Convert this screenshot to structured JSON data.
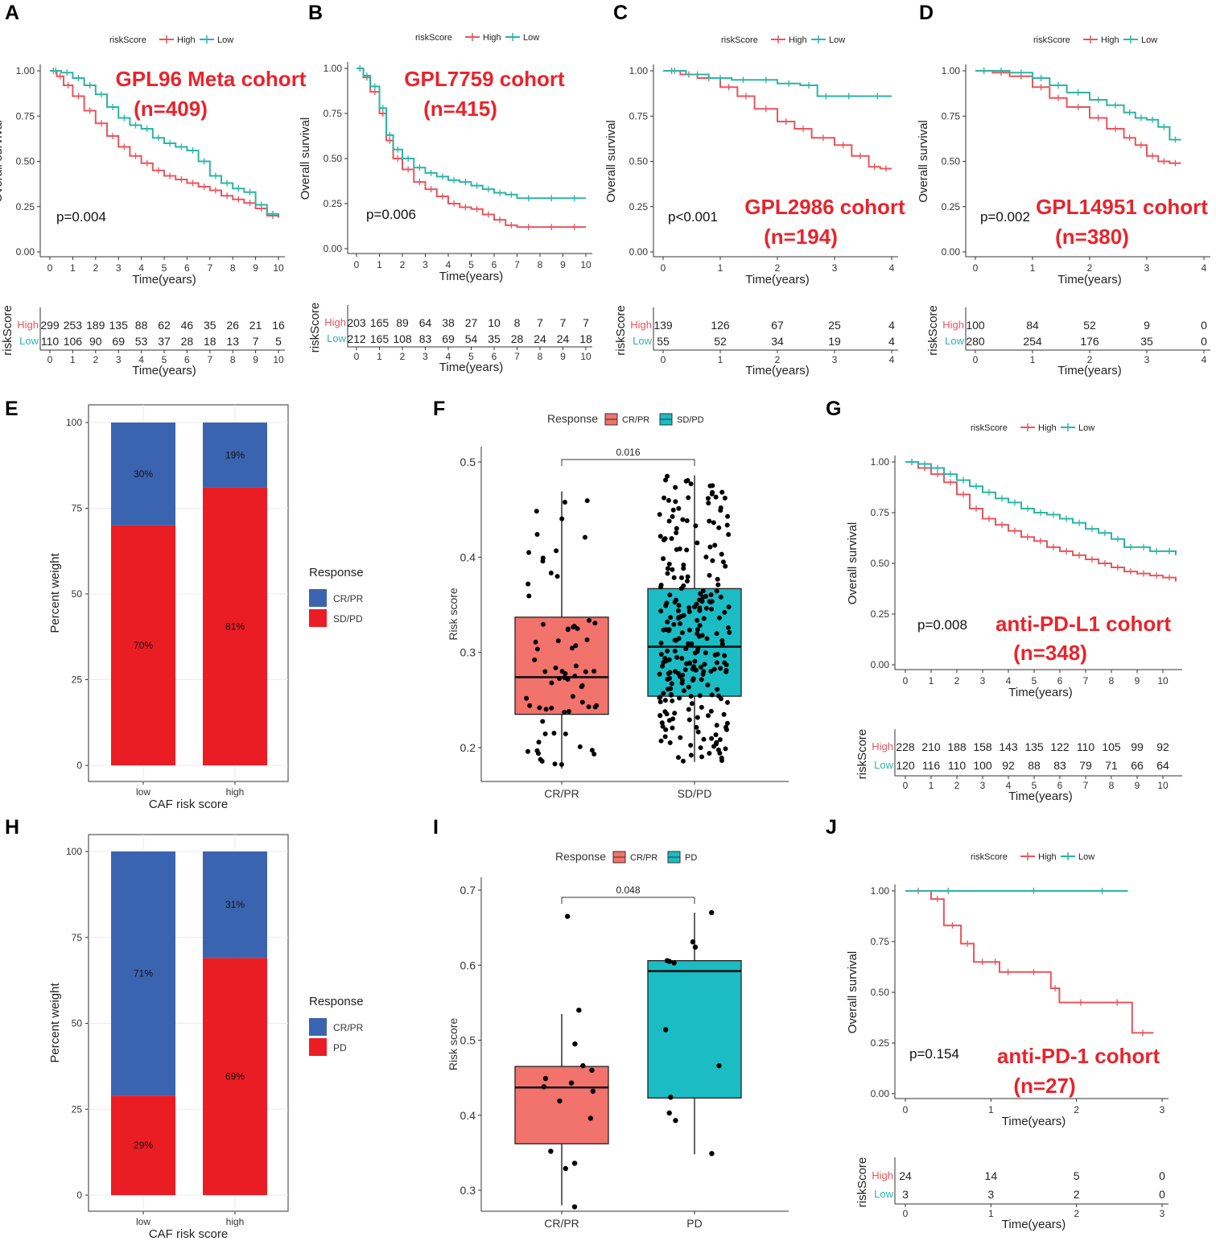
{
  "colors": {
    "high": "#e8555f",
    "low": "#2bb5a5",
    "crpr_bar": "#3b64b0",
    "sdpd_bar": "#ea1d25",
    "crpr_box": "#f2726c",
    "sdpd_box": "#1bbcc3",
    "cohort_label": "#e8242c"
  },
  "km_legend": {
    "title": "riskScore",
    "high": "High",
    "low": "Low"
  },
  "km_common": {
    "ylabel": "Overall survival",
    "xlabel": "Time(years)",
    "table_ylabel": "riskScore",
    "yticks": [
      "0.00",
      "0.25",
      "0.50",
      "0.75",
      "1.00"
    ]
  },
  "chart_data": [
    {
      "panel": "A",
      "type": "line",
      "title": "GPL96 Meta cohort",
      "n_label": "(n=409)",
      "pvalue": "p=0.004",
      "xlim": [
        0,
        10
      ],
      "ylim": [
        0,
        1
      ],
      "x_ticks": [
        0,
        1,
        2,
        3,
        4,
        5,
        6,
        7,
        8,
        9,
        10
      ],
      "series": [
        {
          "name": "High",
          "x": [
            0,
            0.3,
            0.6,
            1,
            1.5,
            2,
            2.5,
            3,
            3.5,
            4,
            4.5,
            5,
            5.5,
            6,
            6.5,
            7,
            7.5,
            8,
            8.5,
            9,
            9.5,
            10
          ],
          "y": [
            1,
            0.97,
            0.92,
            0.86,
            0.78,
            0.71,
            0.64,
            0.58,
            0.53,
            0.49,
            0.45,
            0.42,
            0.4,
            0.38,
            0.36,
            0.34,
            0.31,
            0.29,
            0.27,
            0.24,
            0.2,
            0.19
          ]
        },
        {
          "name": "Low",
          "x": [
            0,
            0.5,
            1,
            1.5,
            2,
            2.5,
            3,
            3.5,
            4,
            4.5,
            5,
            5.5,
            6,
            6.5,
            7,
            7.5,
            8,
            8.5,
            9,
            9.5,
            10
          ],
          "y": [
            1,
            0.99,
            0.96,
            0.92,
            0.87,
            0.8,
            0.74,
            0.7,
            0.68,
            0.63,
            0.6,
            0.58,
            0.56,
            0.5,
            0.42,
            0.38,
            0.35,
            0.33,
            0.26,
            0.21,
            0.2
          ]
        }
      ],
      "risk_table": {
        "times": [
          "0",
          "1",
          "2",
          "3",
          "4",
          "5",
          "6",
          "7",
          "8",
          "9",
          "10"
        ],
        "high": [
          "299",
          "253",
          "189",
          "135",
          "88",
          "62",
          "46",
          "35",
          "26",
          "21",
          "16"
        ],
        "low": [
          "110",
          "106",
          "90",
          "69",
          "53",
          "37",
          "28",
          "18",
          "13",
          "7",
          "5"
        ]
      }
    },
    {
      "panel": "B",
      "type": "line",
      "title": "GPL7759 cohort",
      "n_label": "(n=415)",
      "pvalue": "p=0.006",
      "xlim": [
        0,
        10
      ],
      "ylim": [
        0,
        1
      ],
      "x_ticks": [
        0,
        1,
        2,
        3,
        4,
        5,
        6,
        7,
        8,
        9,
        10
      ],
      "series": [
        {
          "name": "High",
          "x": [
            0,
            0.3,
            0.6,
            1,
            1.3,
            1.6,
            2,
            2.5,
            3,
            3.5,
            4,
            4.5,
            5,
            5.5,
            6,
            6.5,
            7,
            8,
            9,
            10
          ],
          "y": [
            1,
            0.95,
            0.87,
            0.75,
            0.6,
            0.5,
            0.44,
            0.37,
            0.33,
            0.29,
            0.25,
            0.23,
            0.22,
            0.19,
            0.16,
            0.13,
            0.12,
            0.12,
            0.12,
            0.12
          ]
        },
        {
          "name": "Low",
          "x": [
            0,
            0.3,
            0.6,
            1,
            1.3,
            1.6,
            2,
            2.5,
            3,
            3.5,
            4,
            4.5,
            5,
            5.5,
            6,
            6.5,
            7,
            8,
            9,
            10
          ],
          "y": [
            1,
            0.96,
            0.9,
            0.78,
            0.63,
            0.55,
            0.5,
            0.45,
            0.42,
            0.4,
            0.38,
            0.37,
            0.35,
            0.33,
            0.31,
            0.3,
            0.28,
            0.28,
            0.28,
            0.28
          ]
        }
      ],
      "risk_table": {
        "times": [
          "0",
          "1",
          "2",
          "3",
          "4",
          "5",
          "6",
          "7",
          "8",
          "9",
          "10"
        ],
        "high": [
          "203",
          "165",
          "89",
          "64",
          "38",
          "27",
          "10",
          "8",
          "7",
          "7",
          "7"
        ],
        "low": [
          "212",
          "165",
          "108",
          "83",
          "69",
          "54",
          "35",
          "28",
          "24",
          "24",
          "18"
        ]
      }
    },
    {
      "panel": "C",
      "type": "line",
      "title": "GPL2986 cohort",
      "n_label": "(n=194)",
      "pvalue": "p<0.001",
      "xlim": [
        0,
        4
      ],
      "ylim": [
        0,
        1
      ],
      "x_ticks": [
        0,
        1,
        2,
        3,
        4
      ],
      "series": [
        {
          "name": "High",
          "x": [
            0,
            0.3,
            0.6,
            1,
            1.3,
            1.6,
            2,
            2.3,
            2.6,
            3,
            3.3,
            3.6,
            3.8,
            4
          ],
          "y": [
            1,
            0.98,
            0.96,
            0.91,
            0.86,
            0.79,
            0.72,
            0.68,
            0.63,
            0.59,
            0.53,
            0.47,
            0.46,
            0.46
          ]
        },
        {
          "name": "Low",
          "x": [
            0,
            0.4,
            0.8,
            1.2,
            1.6,
            2,
            2.4,
            2.7,
            3,
            3.5,
            4
          ],
          "y": [
            1,
            0.98,
            0.96,
            0.95,
            0.95,
            0.93,
            0.92,
            0.86,
            0.86,
            0.86,
            0.86
          ]
        }
      ],
      "risk_table": {
        "times": [
          "0",
          "1",
          "2",
          "3",
          "4"
        ],
        "high": [
          "139",
          "126",
          "67",
          "25",
          "4"
        ],
        "low": [
          "55",
          "52",
          "34",
          "19",
          "4"
        ]
      }
    },
    {
      "panel": "D",
      "type": "line",
      "title": "GPL14951 cohort",
      "n_label": "(n=380)",
      "pvalue": "p=0.002",
      "xlim": [
        0,
        4
      ],
      "ylim": [
        0,
        1
      ],
      "x_ticks": [
        0,
        1,
        2,
        3,
        4
      ],
      "series": [
        {
          "name": "High",
          "x": [
            0,
            0.3,
            0.6,
            1,
            1.3,
            1.6,
            2,
            2.3,
            2.6,
            2.8,
            3,
            3.2,
            3.4,
            3.6
          ],
          "y": [
            1,
            0.99,
            0.97,
            0.91,
            0.85,
            0.8,
            0.74,
            0.68,
            0.63,
            0.59,
            0.53,
            0.5,
            0.49,
            0.49
          ]
        },
        {
          "name": "Low",
          "x": [
            0,
            0.3,
            0.6,
            1,
            1.3,
            1.6,
            2,
            2.3,
            2.6,
            2.8,
            3,
            3.2,
            3.4,
            3.6
          ],
          "y": [
            1,
            1,
            0.99,
            0.96,
            0.92,
            0.88,
            0.84,
            0.81,
            0.77,
            0.74,
            0.73,
            0.69,
            0.62,
            0.62
          ]
        }
      ],
      "risk_table": {
        "times": [
          "0",
          "1",
          "2",
          "3",
          "4"
        ],
        "high": [
          "100",
          "84",
          "52",
          "9",
          "0"
        ],
        "low": [
          "280",
          "254",
          "176",
          "35",
          "0"
        ]
      }
    },
    {
      "panel": "E",
      "type": "bar",
      "stacked": true,
      "xlabel": "CAF risk score",
      "ylabel": "Percent weight",
      "categories": [
        "low",
        "high"
      ],
      "yticks": [
        "0",
        "25",
        "50",
        "75",
        "100"
      ],
      "legend_title": "Response",
      "series": [
        {
          "name": "CR/PR",
          "values": [
            30,
            19
          ],
          "labels": [
            "30%",
            "19%"
          ]
        },
        {
          "name": "SD/PD",
          "values": [
            70,
            81
          ],
          "labels": [
            "70%",
            "81%"
          ]
        }
      ]
    },
    {
      "panel": "F",
      "type": "box",
      "legend_title": "Response",
      "ylabel": "Risk score",
      "categories": [
        "CR/PR",
        "SD/PD"
      ],
      "pvalue": "0.016",
      "ylim": [
        0.17,
        0.51
      ],
      "yticks": [
        "0.2",
        "0.3",
        "0.4",
        "0.5"
      ],
      "boxes": [
        {
          "name": "CR/PR",
          "q1": 0.235,
          "median": 0.274,
          "q3": 0.337,
          "whisk_low": 0.178,
          "whisk_high": 0.469
        },
        {
          "name": "SD/PD",
          "q1": 0.254,
          "median": 0.306,
          "q3": 0.367,
          "whisk_low": 0.185,
          "whisk_high": 0.486
        }
      ]
    },
    {
      "panel": "G",
      "type": "line",
      "title": "anti-PD-L1 cohort",
      "n_label": "(n=348)",
      "pvalue": "p=0.008",
      "xlim": [
        0,
        10.5
      ],
      "ylim": [
        0,
        1
      ],
      "x_ticks": [
        0,
        1,
        2,
        3,
        4,
        5,
        6,
        7,
        8,
        9,
        10
      ],
      "series": [
        {
          "name": "High",
          "x": [
            0,
            0.5,
            1,
            1.5,
            2,
            2.5,
            3,
            3.5,
            4,
            4.5,
            5,
            5.5,
            6,
            6.5,
            7,
            7.5,
            8,
            8.5,
            9,
            9.5,
            10,
            10.5
          ],
          "y": [
            1,
            0.97,
            0.94,
            0.9,
            0.84,
            0.77,
            0.72,
            0.69,
            0.66,
            0.63,
            0.61,
            0.58,
            0.56,
            0.54,
            0.52,
            0.5,
            0.48,
            0.46,
            0.45,
            0.44,
            0.43,
            0.41
          ]
        },
        {
          "name": "Low",
          "x": [
            0,
            0.5,
            1,
            1.5,
            2,
            2.5,
            3,
            3.5,
            4,
            4.5,
            5,
            5.5,
            6,
            6.5,
            7,
            7.5,
            8,
            8.5,
            9,
            9.5,
            10,
            10.5
          ],
          "y": [
            1,
            0.99,
            0.97,
            0.94,
            0.91,
            0.88,
            0.85,
            0.82,
            0.8,
            0.77,
            0.75,
            0.74,
            0.72,
            0.7,
            0.67,
            0.65,
            0.62,
            0.58,
            0.58,
            0.56,
            0.56,
            0.54
          ]
        }
      ],
      "risk_table": {
        "times": [
          "0",
          "1",
          "2",
          "3",
          "4",
          "5",
          "6",
          "7",
          "8",
          "9",
          "10"
        ],
        "high": [
          "228",
          "210",
          "188",
          "158",
          "143",
          "135",
          "122",
          "110",
          "105",
          "99",
          "92"
        ],
        "low": [
          "120",
          "116",
          "110",
          "100",
          "92",
          "88",
          "83",
          "79",
          "71",
          "66",
          "64"
        ]
      }
    },
    {
      "panel": "H",
      "type": "bar",
      "stacked": true,
      "xlabel": "CAF risk score",
      "ylabel": "Percent weight",
      "categories": [
        "low",
        "high"
      ],
      "yticks": [
        "0",
        "25",
        "50",
        "75",
        "100"
      ],
      "legend_title": "Response",
      "series": [
        {
          "name": "CR/PR",
          "values": [
            71,
            31
          ],
          "labels": [
            "71%",
            "31%"
          ]
        },
        {
          "name": "PD",
          "values": [
            29,
            69
          ],
          "labels": [
            "29%",
            "69%"
          ]
        }
      ]
    },
    {
      "panel": "I",
      "type": "box",
      "legend_title": "Response",
      "ylabel": "Risk score",
      "categories": [
        "CR/PR",
        "PD"
      ],
      "pvalue": "0.048",
      "ylim": [
        0.26,
        0.71
      ],
      "yticks": [
        "0.3",
        "0.4",
        "0.5",
        "0.6",
        "0.7"
      ],
      "boxes": [
        {
          "name": "CR/PR",
          "q1": 0.362,
          "median": 0.437,
          "q3": 0.465,
          "whisk_low": 0.28,
          "whisk_high": 0.535
        },
        {
          "name": "PD",
          "q1": 0.423,
          "median": 0.592,
          "q3": 0.606,
          "whisk_low": 0.348,
          "whisk_high": 0.67
        }
      ],
      "points": {
        "CR/PR": [
          0.665,
          0.54,
          0.495,
          0.466,
          0.46,
          0.449,
          0.443,
          0.438,
          0.432,
          0.419,
          0.396,
          0.352,
          0.336,
          0.329,
          0.278
        ],
        "PD": [
          0.67,
          0.631,
          0.624,
          0.606,
          0.605,
          0.603,
          0.514,
          0.466,
          0.424,
          0.403,
          0.393,
          0.349
        ]
      }
    },
    {
      "panel": "J",
      "type": "line",
      "title": "anti-PD-1 cohort",
      "n_label": "(n=27)",
      "pvalue": "p=0.154",
      "xlim": [
        0,
        3
      ],
      "ylim": [
        0,
        1
      ],
      "x_ticks": [
        0,
        1,
        2,
        3
      ],
      "series": [
        {
          "name": "High",
          "x": [
            0,
            0.3,
            0.45,
            0.65,
            0.8,
            1,
            1.1,
            1.3,
            1.7,
            1.8,
            2.3,
            2.65,
            2.9
          ],
          "y": [
            1,
            0.96,
            0.83,
            0.74,
            0.65,
            0.65,
            0.6,
            0.6,
            0.52,
            0.45,
            0.45,
            0.3,
            0.3
          ]
        },
        {
          "name": "Low",
          "x": [
            0,
            1,
            2,
            2.6
          ],
          "y": [
            1,
            1,
            1,
            1
          ]
        }
      ],
      "risk_table": {
        "times": [
          "0",
          "1",
          "2",
          "3"
        ],
        "high": [
          "24",
          "14",
          "5",
          "0"
        ],
        "low": [
          "3",
          "3",
          "2",
          "0"
        ]
      }
    }
  ]
}
